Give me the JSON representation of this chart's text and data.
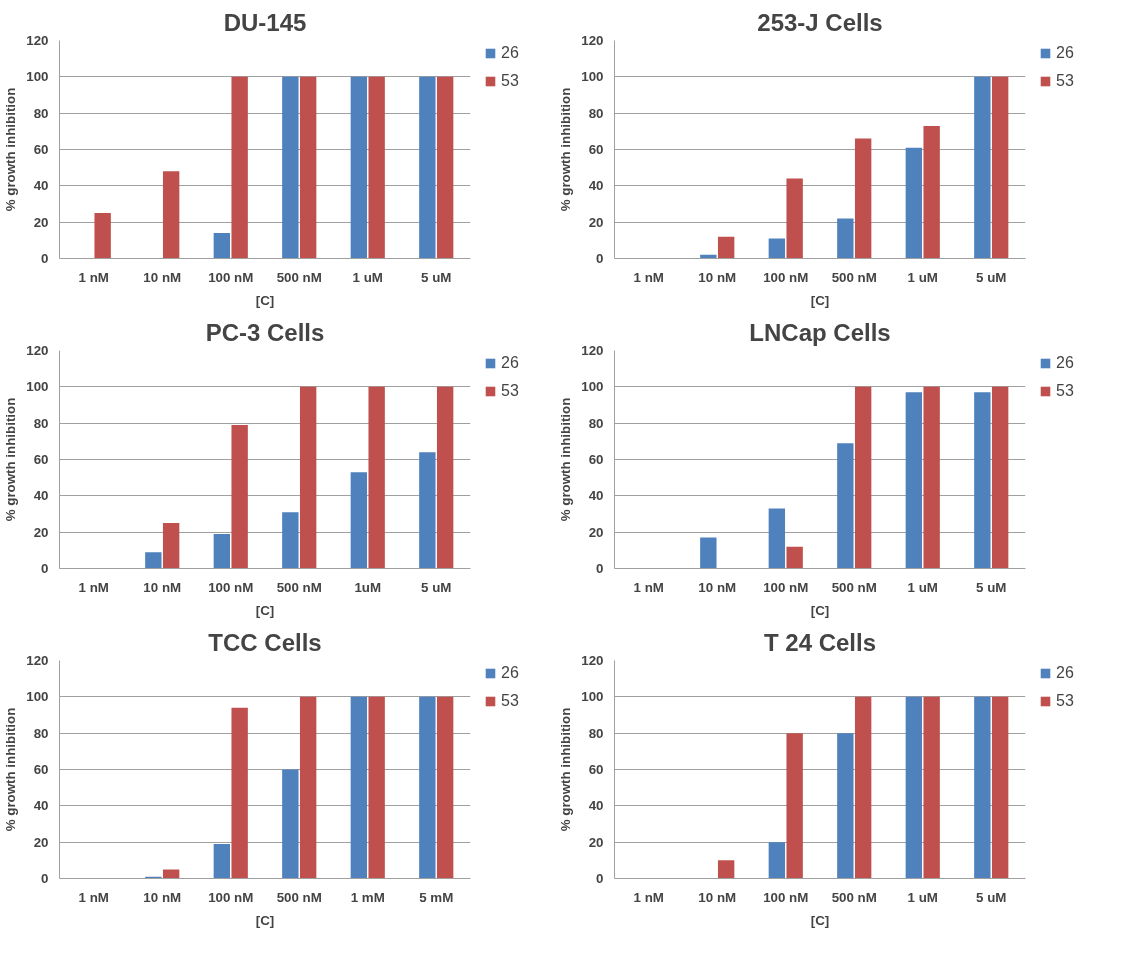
{
  "chart_data": [
    {
      "type": "bar",
      "title": "DU-145",
      "xlabel": "[C]",
      "ylabel": "% growth inhibition",
      "categories": [
        "1 nM",
        "10 nM",
        "100 nM",
        "500 nM",
        "1 uM",
        "5 uM"
      ],
      "ylim": [
        0,
        120
      ],
      "yticks": [
        0,
        20,
        40,
        60,
        80,
        100,
        120
      ],
      "grid": "y",
      "legend": "top right",
      "series": [
        {
          "name": "26",
          "color": "#4f81bd",
          "values": [
            0,
            0,
            14,
            100,
            100,
            100
          ]
        },
        {
          "name": "53",
          "color": "#c0504d",
          "values": [
            25,
            48,
            100,
            100,
            100,
            100
          ]
        }
      ]
    },
    {
      "type": "bar",
      "title": "253-J Cells",
      "xlabel": "[C]",
      "ylabel": "% growth inhibition",
      "categories": [
        "1 nM",
        "10 nM",
        "100 nM",
        "500 nM",
        "1 uM",
        "5 uM"
      ],
      "ylim": [
        0,
        120
      ],
      "yticks": [
        0,
        20,
        40,
        60,
        80,
        100,
        120
      ],
      "grid": "y",
      "legend": "top right",
      "series": [
        {
          "name": "26",
          "color": "#4f81bd",
          "values": [
            0,
            2,
            11,
            22,
            61,
            100
          ]
        },
        {
          "name": "53",
          "color": "#c0504d",
          "values": [
            0,
            12,
            44,
            66,
            73,
            100
          ]
        }
      ]
    },
    {
      "type": "bar",
      "title": "PC-3 Cells",
      "xlabel": "[C]",
      "ylabel": "% growth inhibition",
      "categories": [
        "1 nM",
        "10 nM",
        "100 nM",
        "500 nM",
        "1uM",
        "5 uM"
      ],
      "ylim": [
        0,
        120
      ],
      "yticks": [
        0,
        20,
        40,
        60,
        80,
        100,
        120
      ],
      "grid": "y",
      "legend": "top right",
      "series": [
        {
          "name": "26",
          "color": "#4f81bd",
          "values": [
            0,
            9,
            19,
            31,
            53,
            64
          ]
        },
        {
          "name": "53",
          "color": "#c0504d",
          "values": [
            0,
            25,
            79,
            100,
            100,
            100
          ]
        }
      ]
    },
    {
      "type": "bar",
      "title": "LNCap Cells",
      "xlabel": "[C]",
      "ylabel": "% growth inhibition",
      "categories": [
        "1 nM",
        "10 nM",
        "100 nM",
        "500 nM",
        "1 uM",
        "5 uM"
      ],
      "ylim": [
        0,
        120
      ],
      "yticks": [
        0,
        20,
        40,
        60,
        80,
        100,
        120
      ],
      "grid": "y",
      "legend": "top right",
      "series": [
        {
          "name": "26",
          "color": "#4f81bd",
          "values": [
            0,
            17,
            33,
            69,
            97,
            97
          ]
        },
        {
          "name": "53",
          "color": "#c0504d",
          "values": [
            0,
            0,
            12,
            100,
            100,
            100
          ]
        }
      ]
    },
    {
      "type": "bar",
      "title": "TCC Cells",
      "xlabel": "[C]",
      "ylabel": "% growth inhibition",
      "categories": [
        "1 nM",
        "10 nM",
        "100 nM",
        "500 nM",
        "1 mM",
        "5 mM"
      ],
      "ylim": [
        0,
        120
      ],
      "yticks": [
        0,
        20,
        40,
        60,
        80,
        100,
        120
      ],
      "grid": "y",
      "legend": "top right",
      "series": [
        {
          "name": "26",
          "color": "#4f81bd",
          "values": [
            0,
            1,
            19,
            60,
            100,
            100
          ]
        },
        {
          "name": "53",
          "color": "#c0504d",
          "values": [
            0,
            5,
            94,
            100,
            100,
            100
          ]
        }
      ]
    },
    {
      "type": "bar",
      "title": "T 24 Cells",
      "xlabel": "[C]",
      "ylabel": "% growth inhibition",
      "categories": [
        "1 nM",
        "10 nM",
        "100 nM",
        "500 nM",
        "1 uM",
        "5 uM"
      ],
      "ylim": [
        0,
        120
      ],
      "yticks": [
        0,
        20,
        40,
        60,
        80,
        100,
        120
      ],
      "grid": "y",
      "legend": "top right",
      "series": [
        {
          "name": "26",
          "color": "#4f81bd",
          "values": [
            0,
            0,
            20,
            80,
            100,
            100
          ]
        },
        {
          "name": "53",
          "color": "#c0504d",
          "values": [
            0,
            10,
            80,
            100,
            100,
            100
          ]
        }
      ]
    }
  ]
}
